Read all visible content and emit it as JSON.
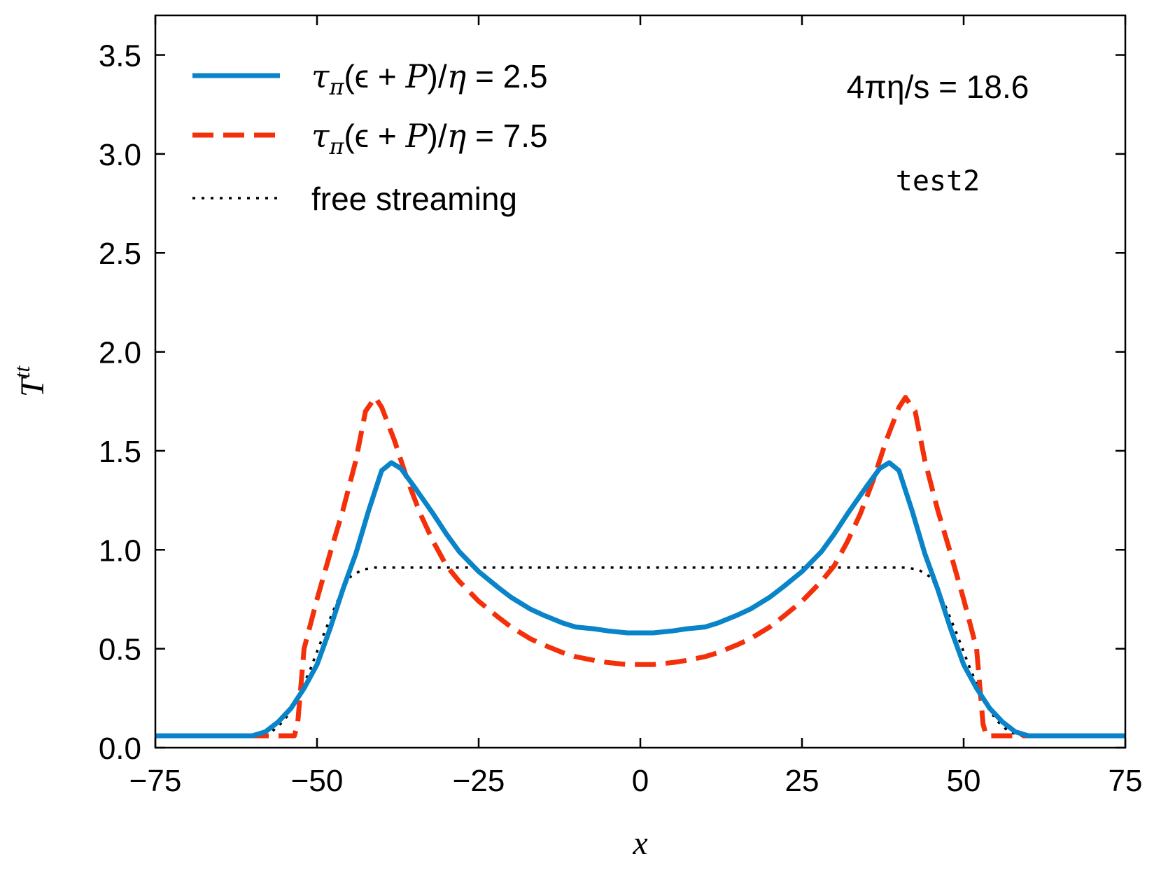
{
  "chart_data": {
    "type": "line",
    "title": "",
    "xlabel": "x",
    "ylabel": "T",
    "ylabel_sup": "tt",
    "xlim": [
      -75,
      75
    ],
    "ylim": [
      0,
      3.7
    ],
    "x_ticks": [
      -75,
      -50,
      -25,
      0,
      25,
      50,
      75
    ],
    "x_tick_labels": [
      "−75",
      "−50",
      "−25",
      "0",
      "25",
      "50",
      "75"
    ],
    "y_ticks": [
      0.0,
      0.5,
      1.0,
      1.5,
      2.0,
      2.5,
      3.0,
      3.5
    ],
    "y_tick_labels": [
      "0.0",
      "0.5",
      "1.0",
      "1.5",
      "2.0",
      "2.5",
      "3.0",
      "3.5"
    ],
    "grid": false,
    "legend_position": "top-left",
    "annotations": [
      "4πη/s = 18.6",
      "test2"
    ],
    "series": [
      {
        "name": "τπ(ϵ + P)/η = 2.5",
        "legend": {
          "a": "τ",
          "sub": "π",
          "b": "(ϵ + ",
          "c": "P",
          "d": ")/",
          "e": "η",
          "f": " = 2.5"
        },
        "color": "#0a84c8",
        "style": "solid",
        "points": [
          [
            -75,
            0.06
          ],
          [
            -60,
            0.06
          ],
          [
            -58,
            0.08
          ],
          [
            -56,
            0.13
          ],
          [
            -54,
            0.2
          ],
          [
            -52,
            0.3
          ],
          [
            -50,
            0.42
          ],
          [
            -48,
            0.6
          ],
          [
            -46,
            0.8
          ],
          [
            -44,
            0.98
          ],
          [
            -42,
            1.2
          ],
          [
            -40,
            1.4
          ],
          [
            -38.5,
            1.44
          ],
          [
            -37,
            1.41
          ],
          [
            -35,
            1.32
          ],
          [
            -32,
            1.18
          ],
          [
            -30,
            1.08
          ],
          [
            -28,
            0.99
          ],
          [
            -25,
            0.89
          ],
          [
            -22,
            0.81
          ],
          [
            -20,
            0.76
          ],
          [
            -17,
            0.7
          ],
          [
            -15,
            0.67
          ],
          [
            -12,
            0.63
          ],
          [
            -10,
            0.61
          ],
          [
            -7,
            0.6
          ],
          [
            -5,
            0.59
          ],
          [
            -2,
            0.58
          ],
          [
            0,
            0.58
          ],
          [
            2,
            0.58
          ],
          [
            5,
            0.59
          ],
          [
            7,
            0.6
          ],
          [
            10,
            0.61
          ],
          [
            12,
            0.63
          ],
          [
            15,
            0.67
          ],
          [
            17,
            0.7
          ],
          [
            20,
            0.76
          ],
          [
            22,
            0.81
          ],
          [
            25,
            0.89
          ],
          [
            28,
            0.99
          ],
          [
            30,
            1.08
          ],
          [
            32,
            1.18
          ],
          [
            35,
            1.32
          ],
          [
            37,
            1.41
          ],
          [
            38.5,
            1.44
          ],
          [
            40,
            1.4
          ],
          [
            42,
            1.2
          ],
          [
            44,
            0.98
          ],
          [
            46,
            0.8
          ],
          [
            48,
            0.6
          ],
          [
            50,
            0.42
          ],
          [
            52,
            0.3
          ],
          [
            54,
            0.2
          ],
          [
            56,
            0.13
          ],
          [
            58,
            0.08
          ],
          [
            60,
            0.06
          ],
          [
            75,
            0.06
          ]
        ]
      },
      {
        "name": "τπ(ϵ + P)/η = 7.5",
        "legend": {
          "a": "τ",
          "sub": "π",
          "b": "(ϵ + ",
          "c": "P",
          "d": ")/",
          "e": "η",
          "f": " = 7.5"
        },
        "color": "#f4300b",
        "style": "dashed",
        "points": [
          [
            -75,
            0.06
          ],
          [
            -53.5,
            0.06
          ],
          [
            -53,
            0.12
          ],
          [
            -52,
            0.5
          ],
          [
            -50,
            0.75
          ],
          [
            -48,
            0.98
          ],
          [
            -46,
            1.2
          ],
          [
            -44,
            1.45
          ],
          [
            -42.5,
            1.7
          ],
          [
            -41,
            1.77
          ],
          [
            -40,
            1.72
          ],
          [
            -38,
            1.55
          ],
          [
            -36,
            1.35
          ],
          [
            -34,
            1.18
          ],
          [
            -32,
            1.04
          ],
          [
            -30,
            0.92
          ],
          [
            -28,
            0.84
          ],
          [
            -25,
            0.74
          ],
          [
            -22,
            0.66
          ],
          [
            -20,
            0.61
          ],
          [
            -17,
            0.55
          ],
          [
            -15,
            0.52
          ],
          [
            -12,
            0.48
          ],
          [
            -10,
            0.46
          ],
          [
            -7,
            0.44
          ],
          [
            -5,
            0.43
          ],
          [
            -2,
            0.42
          ],
          [
            0,
            0.42
          ],
          [
            2,
            0.42
          ],
          [
            5,
            0.43
          ],
          [
            7,
            0.44
          ],
          [
            10,
            0.46
          ],
          [
            12,
            0.48
          ],
          [
            15,
            0.52
          ],
          [
            17,
            0.55
          ],
          [
            20,
            0.61
          ],
          [
            22,
            0.66
          ],
          [
            25,
            0.74
          ],
          [
            28,
            0.84
          ],
          [
            30,
            0.92
          ],
          [
            32,
            1.04
          ],
          [
            34,
            1.18
          ],
          [
            36,
            1.35
          ],
          [
            38,
            1.55
          ],
          [
            40,
            1.72
          ],
          [
            41,
            1.77
          ],
          [
            42.5,
            1.7
          ],
          [
            44,
            1.45
          ],
          [
            46,
            1.2
          ],
          [
            48,
            0.98
          ],
          [
            50,
            0.75
          ],
          [
            52,
            0.5
          ],
          [
            53,
            0.12
          ],
          [
            53.5,
            0.06
          ],
          [
            75,
            0.06
          ]
        ]
      },
      {
        "name": "free streaming",
        "color": "#000000",
        "style": "dotted",
        "points": [
          [
            -75,
            0.06
          ],
          [
            -59,
            0.06
          ],
          [
            -57,
            0.08
          ],
          [
            -55,
            0.14
          ],
          [
            -53,
            0.25
          ],
          [
            -51,
            0.4
          ],
          [
            -49,
            0.57
          ],
          [
            -47,
            0.73
          ],
          [
            -45,
            0.86
          ],
          [
            -43,
            0.9
          ],
          [
            -41,
            0.91
          ],
          [
            -35,
            0.91
          ],
          [
            0,
            0.91
          ],
          [
            35,
            0.91
          ],
          [
            41,
            0.91
          ],
          [
            43,
            0.9
          ],
          [
            45,
            0.86
          ],
          [
            47,
            0.73
          ],
          [
            49,
            0.57
          ],
          [
            51,
            0.4
          ],
          [
            53,
            0.25
          ],
          [
            55,
            0.14
          ],
          [
            57,
            0.08
          ],
          [
            59,
            0.06
          ],
          [
            75,
            0.06
          ]
        ]
      }
    ]
  }
}
